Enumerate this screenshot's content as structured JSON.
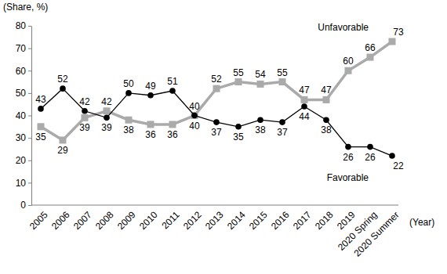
{
  "chart_data": {
    "type": "line",
    "y_label": "(Share, %)",
    "x_label": "(Year)",
    "categories": [
      "2005",
      "2006",
      "2007",
      "2008",
      "2009",
      "2010",
      "2011",
      "2012",
      "2013",
      "2014",
      "2015",
      "2016",
      "2017",
      "2018",
      "2019",
      "2020 Spring",
      "2020 Summer"
    ],
    "series": [
      {
        "name": "Unfavorable",
        "color": "#aaaaaa",
        "marker": "square",
        "line_style": "solid",
        "values": [
          35,
          29,
          39,
          42,
          38,
          36,
          36,
          40,
          52,
          55,
          54,
          55,
          47,
          47,
          60,
          66,
          73
        ]
      },
      {
        "name": "Favorable",
        "color": "#000000",
        "marker": "circle",
        "line_style": "solid",
        "values": [
          43,
          52,
          42,
          39,
          50,
          49,
          51,
          40,
          37,
          35,
          38,
          37,
          44,
          38,
          26,
          26,
          22
        ]
      }
    ],
    "ylim": [
      0,
      80
    ],
    "yticks": [
      0,
      10,
      20,
      30,
      40,
      50,
      60,
      70,
      80
    ],
    "grid": false,
    "data_labels": true
  }
}
